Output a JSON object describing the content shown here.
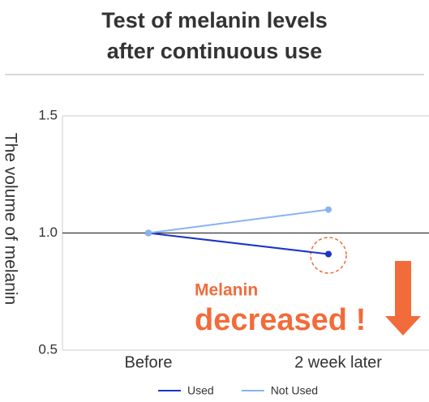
{
  "chart_data": {
    "type": "line",
    "title": "Test of melanin levels after continuous use",
    "y_label": "The volume of melanin",
    "categories": [
      "Before",
      "2  week later"
    ],
    "series": [
      {
        "name": "Used",
        "color": "#1a35c7",
        "values": [
          1.0,
          0.91
        ]
      },
      {
        "name": "Not Used",
        "color": "#86b4f2",
        "values": [
          1.0,
          1.1
        ]
      }
    ],
    "ylim": [
      0.5,
      1.5
    ],
    "yticks": [
      0.5,
      {
        "value": 1,
        "label": "1.0"
      },
      1.5
    ],
    "grid": true,
    "reference_line": {
      "value": 1,
      "color": "#333333"
    },
    "annotations": [
      "Melanin",
      "decreased !"
    ],
    "annotation_color": "#f26b3a",
    "legend": "bottom"
  }
}
